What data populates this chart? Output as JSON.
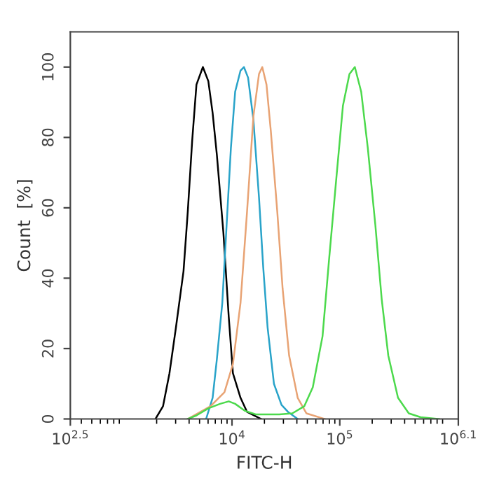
{
  "chart_data": {
    "type": "line",
    "xlabel": "FITC-H",
    "ylabel": "Count  [%]",
    "log": "x",
    "grid": false,
    "legend": false,
    "marker": "none",
    "line_style": "solid",
    "xlim": [
      316.2,
      1259000
    ],
    "xticks": [
      {
        "value": 316.2,
        "label": "10$^{2.5}$"
      },
      {
        "value": 10000,
        "label": "10$^{4}$"
      },
      {
        "value": 100000,
        "label": "10$^{5}$"
      },
      {
        "value": 1259000,
        "label": "10$^{6.1}$"
      }
    ],
    "ylim": [
      0,
      110
    ],
    "yticks": [
      0,
      20,
      40,
      60,
      80,
      100
    ],
    "series": [
      {
        "color": "#000000",
        "x": [
          1950,
          2290,
          2630,
          3020,
          3550,
          3890,
          4270,
          4680,
          5370,
          6030,
          6610,
          7240,
          8320,
          9330,
          10200,
          12000,
          13800,
          18600
        ],
        "values": [
          0,
          3.6,
          13,
          26,
          42,
          59,
          79,
          95,
          100,
          96,
          87,
          75,
          53,
          29,
          13,
          6,
          2,
          0
        ]
      },
      {
        "color": "#29a3c9",
        "x": [
          5750,
          6610,
          7240,
          8130,
          8910,
          9770,
          10700,
          12000,
          12900,
          14100,
          15800,
          17800,
          19500,
          21400,
          24500,
          28800,
          33100,
          40700
        ],
        "values": [
          0,
          6,
          17,
          33,
          55,
          77,
          93,
          99,
          100,
          97,
          85,
          63,
          43,
          26,
          10,
          4,
          2,
          0
        ]
      },
      {
        "color": "#e8a374",
        "x": [
          3890,
          6310,
          8510,
          10200,
          12000,
          13800,
          15800,
          17800,
          19100,
          20900,
          22900,
          26300,
          29500,
          33900,
          40700,
          49000,
          72400
        ],
        "values": [
          0,
          3.6,
          7.6,
          15.6,
          33,
          59,
          86,
          98,
          100,
          95,
          82,
          59,
          37,
          18,
          6,
          1.6,
          0
        ]
      },
      {
        "color": "#4cd94c",
        "x": [
          3890,
          4680,
          6030,
          7760,
          9330,
          10700,
          13200,
          16600,
          27500,
          36300,
          46800,
          56200,
          69200,
          79400,
          93300,
          107000,
          123000,
          138000,
          158000,
          182000,
          214000,
          245000,
          282000,
          347000,
          437000,
          562000,
          832000
        ],
        "values": [
          0,
          1,
          3,
          4.3,
          5,
          4.3,
          2.3,
          1.3,
          1.3,
          1.6,
          3.6,
          9,
          23.5,
          45,
          69,
          89,
          98,
          100,
          93,
          77,
          55,
          34,
          18,
          6,
          1.6,
          0.5,
          0
        ]
      }
    ]
  }
}
